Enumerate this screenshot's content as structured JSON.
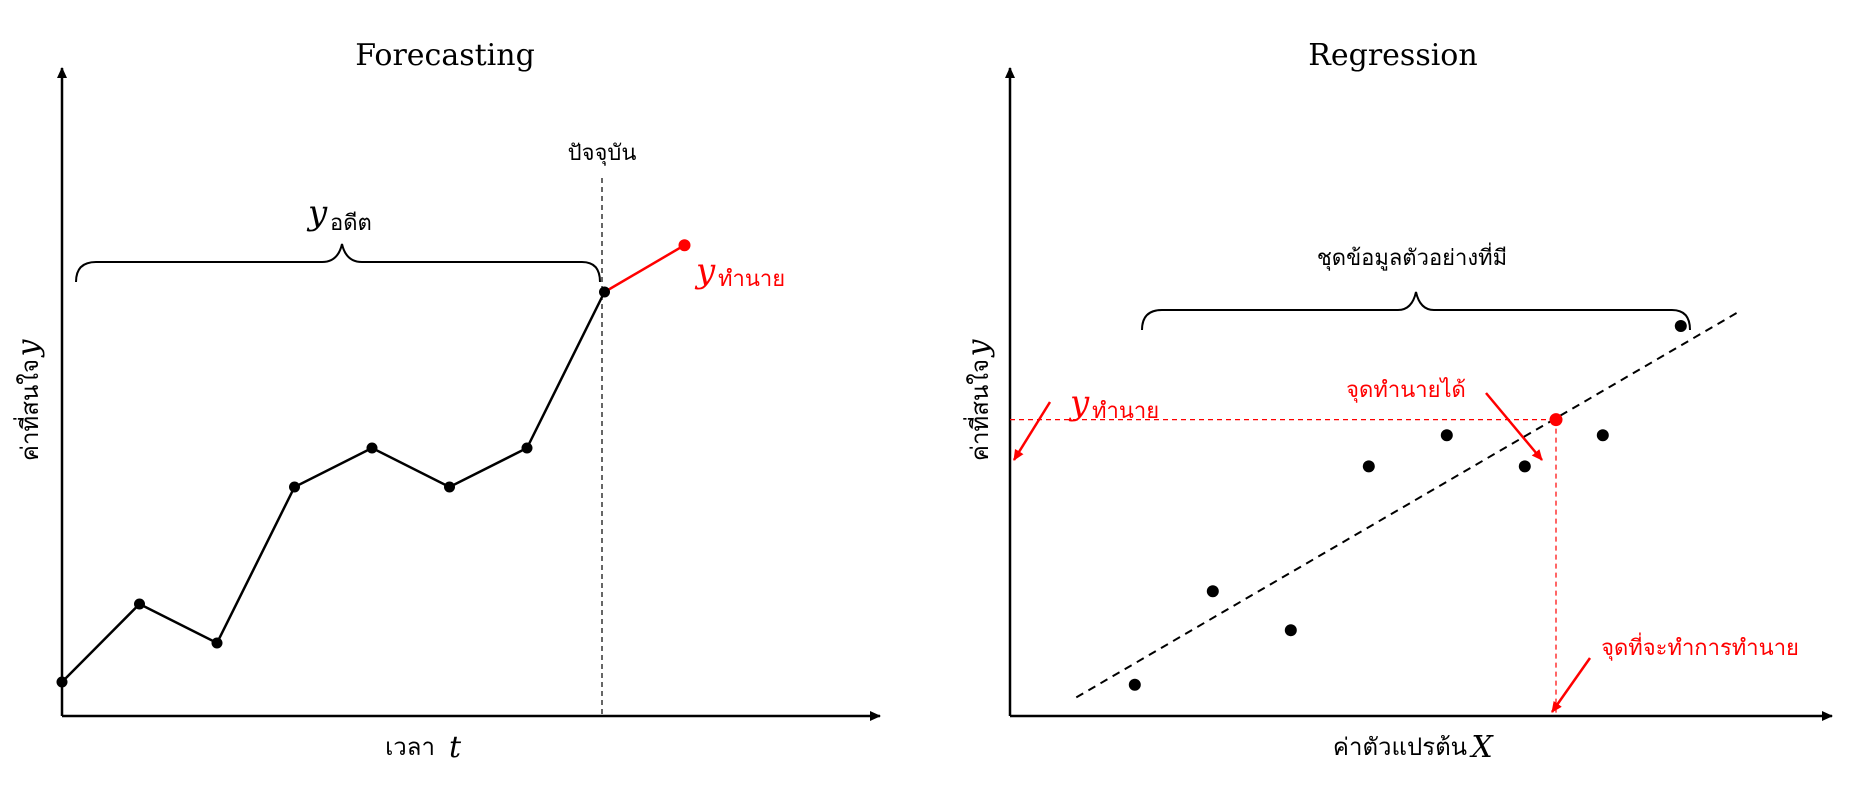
{
  "colors": {
    "line": "#000000",
    "highlight": "#ff0000"
  },
  "forecast": {
    "title": "Forecasting",
    "x_label": "เวลา",
    "x_var": "t",
    "y_label": "ค่าที่สนใจ",
    "y_var": "y",
    "now_label": "ปัจจุบัน",
    "past_var": "y",
    "past_sub": "อดีต",
    "pred_var": "y",
    "pred_sub": "ทำนาย",
    "series_values": [
      1.0,
      2.0,
      1.5,
      3.5,
      4.0,
      3.5,
      4.0,
      6.0
    ],
    "predicted_value": 6.6,
    "chart_type": "line"
  },
  "regression": {
    "title": "Regression",
    "x_label": "ค่าตัวแปรต้น",
    "x_var": "X",
    "y_label": "ค่าที่สนใจ",
    "y_var": "y",
    "sample_label": "ชุดข้อมูลตัวอย่างที่มี",
    "pred_var": "y",
    "pred_sub": "ทำนาย",
    "predicted_point_label": "จุดทำนายได้",
    "target_point_label": "จุดที่จะทำการทำนาย",
    "points": [
      [
        1.6,
        0.4
      ],
      [
        2.6,
        1.6
      ],
      [
        3.6,
        1.1
      ],
      [
        4.6,
        3.2
      ],
      [
        5.6,
        3.6
      ],
      [
        6.6,
        3.2
      ],
      [
        7.6,
        3.6
      ],
      [
        8.6,
        5.0
      ]
    ],
    "predicted_point": [
      7.0,
      3.8
    ],
    "chart_type": "scatter"
  }
}
